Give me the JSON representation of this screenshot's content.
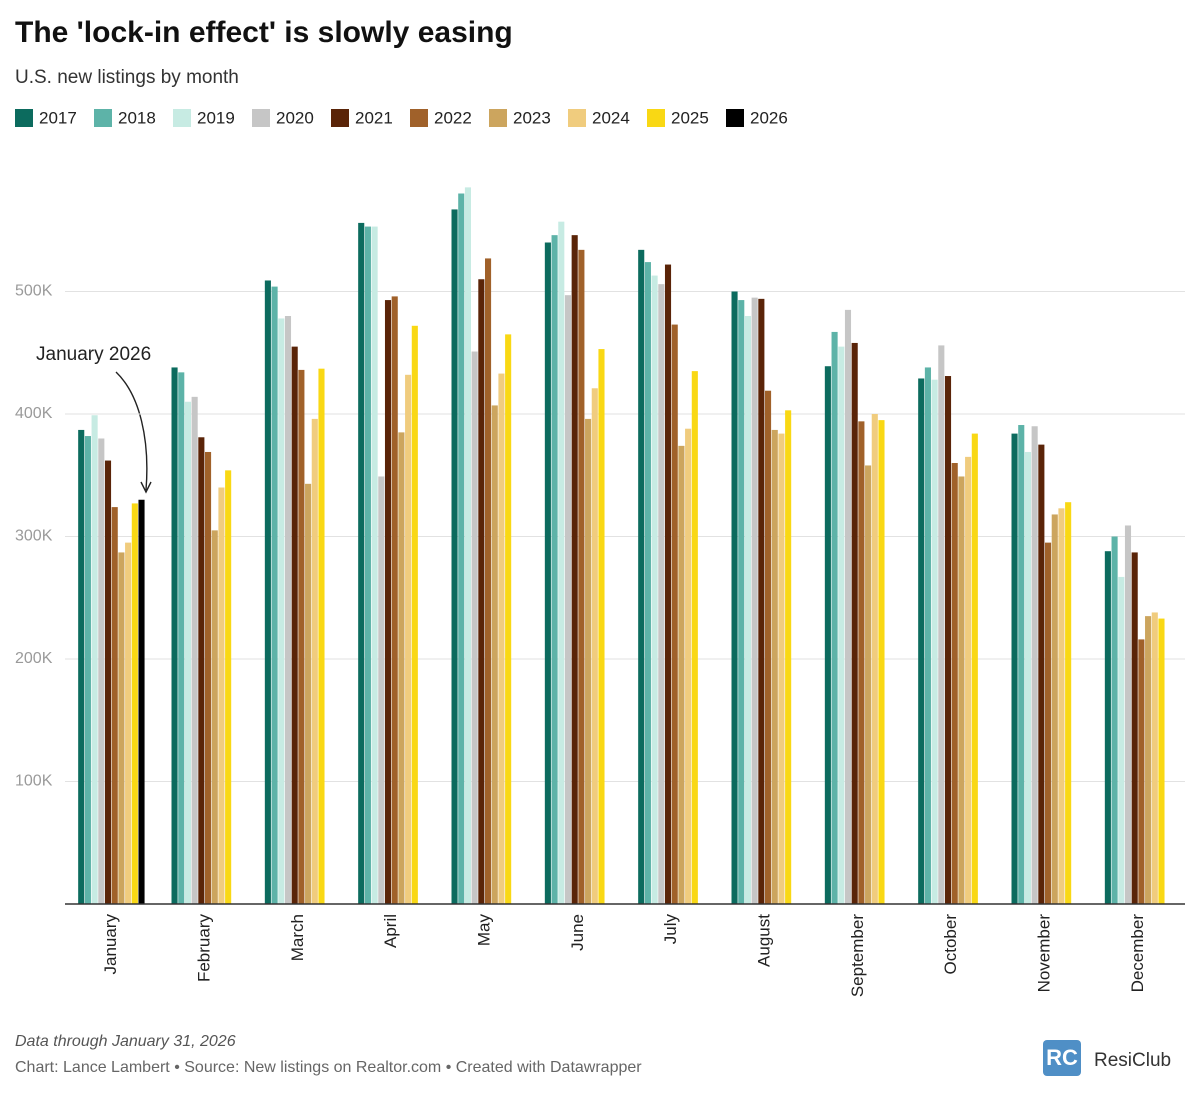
{
  "chart_data": {
    "type": "bar",
    "title": "The 'lock-in effect' is slowly easing",
    "subtitle": "U.S. new listings by month",
    "annotation": "January 2026",
    "note": "Data through January 31, 2026",
    "source": "Chart: Lance Lambert • Source: New listings on Realtor.com • Created with Datawrapper",
    "brand": "ResiClub",
    "categories": [
      "January",
      "February",
      "March",
      "April",
      "May",
      "June",
      "July",
      "August",
      "September",
      "October",
      "November",
      "December"
    ],
    "series": [
      {
        "name": "2017",
        "color": "#0c6b5e",
        "values": [
          387000,
          438000,
          509000,
          556000,
          567000,
          540000,
          534000,
          500000,
          439000,
          429000,
          384000,
          288000
        ]
      },
      {
        "name": "2018",
        "color": "#5db3a8",
        "values": [
          382000,
          434000,
          504000,
          553000,
          580000,
          546000,
          524000,
          493000,
          467000,
          438000,
          391000,
          300000
        ]
      },
      {
        "name": "2019",
        "color": "#c7ebe3",
        "values": [
          399000,
          410000,
          478000,
          553000,
          585000,
          557000,
          513000,
          480000,
          455000,
          428000,
          369000,
          267000
        ]
      },
      {
        "name": "2020",
        "color": "#c6c6c6",
        "values": [
          380000,
          414000,
          480000,
          349000,
          451000,
          497000,
          506000,
          495000,
          485000,
          456000,
          390000,
          309000
        ]
      },
      {
        "name": "2021",
        "color": "#5a2408",
        "values": [
          362000,
          381000,
          455000,
          493000,
          510000,
          546000,
          522000,
          494000,
          458000,
          431000,
          375000,
          287000
        ]
      },
      {
        "name": "2022",
        "color": "#a0612a",
        "values": [
          324000,
          369000,
          436000,
          496000,
          527000,
          534000,
          473000,
          419000,
          394000,
          360000,
          295000,
          216000
        ]
      },
      {
        "name": "2023",
        "color": "#cca55e",
        "values": [
          287000,
          305000,
          343000,
          385000,
          407000,
          396000,
          374000,
          387000,
          358000,
          349000,
          318000,
          235000
        ]
      },
      {
        "name": "2024",
        "color": "#f0cc7e",
        "values": [
          295000,
          340000,
          396000,
          432000,
          433000,
          421000,
          388000,
          384000,
          400000,
          365000,
          323000,
          238000
        ]
      },
      {
        "name": "2025",
        "color": "#f9d814",
        "values": [
          327000,
          354000,
          437000,
          472000,
          465000,
          453000,
          435000,
          403000,
          395000,
          384000,
          328000,
          233000
        ]
      },
      {
        "name": "2026",
        "color": "#000000",
        "values": [
          330000,
          null,
          null,
          null,
          null,
          null,
          null,
          null,
          null,
          null,
          null,
          null
        ]
      }
    ],
    "ylim": [
      0,
      600000
    ],
    "yticks": [
      {
        "value": 100000,
        "label": "100K"
      },
      {
        "value": 200000,
        "label": "200K"
      },
      {
        "value": 300000,
        "label": "300K"
      },
      {
        "value": 400000,
        "label": "400K"
      },
      {
        "value": 500000,
        "label": "500K"
      }
    ],
    "grid": true
  }
}
